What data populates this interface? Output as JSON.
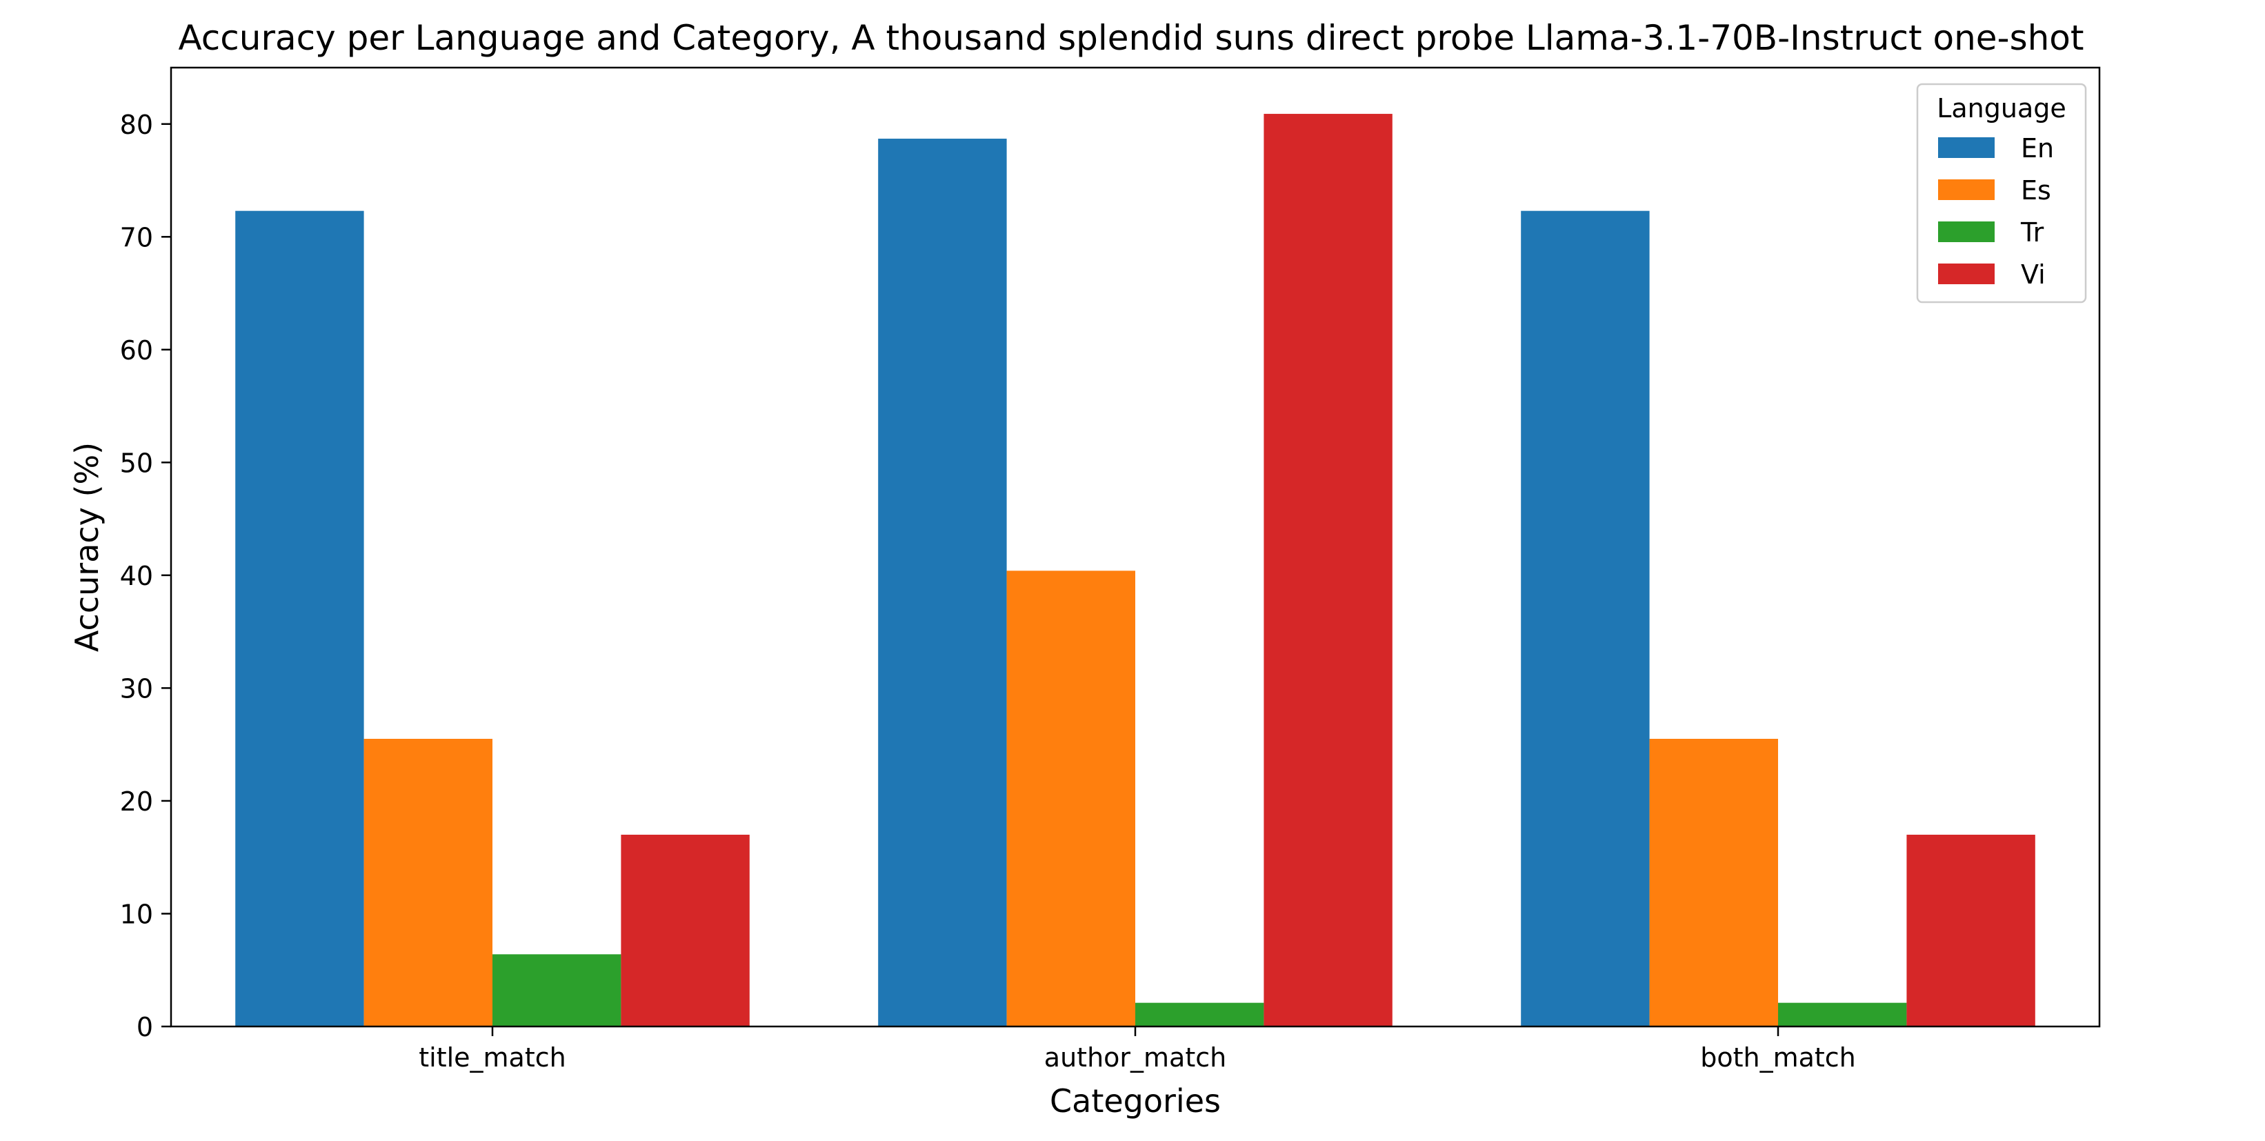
{
  "chart_data": {
    "type": "bar",
    "title": "Accuracy per Language and Category, A thousand splendid suns direct probe Llama-3.1-70B-Instruct one-shot",
    "xlabel": "Categories",
    "ylabel": "Accuracy (%)",
    "categories": [
      "title_match",
      "author_match",
      "both_match"
    ],
    "ylim": [
      0,
      85
    ],
    "yticks": [
      0,
      10,
      20,
      30,
      40,
      50,
      60,
      70,
      80
    ],
    "grid": false,
    "legend": {
      "title": "Language",
      "placement": "top-right"
    },
    "series": [
      {
        "name": "En",
        "color": "#1f77b4",
        "values": [
          72.3,
          78.7,
          72.3
        ]
      },
      {
        "name": "Es",
        "color": "#ff7f0e",
        "values": [
          25.5,
          40.4,
          25.5
        ]
      },
      {
        "name": "Tr",
        "color": "#2ca02c",
        "values": [
          6.4,
          2.1,
          2.1
        ]
      },
      {
        "name": "Vi",
        "color": "#d62728",
        "values": [
          17.0,
          80.9,
          17.0
        ]
      }
    ]
  }
}
